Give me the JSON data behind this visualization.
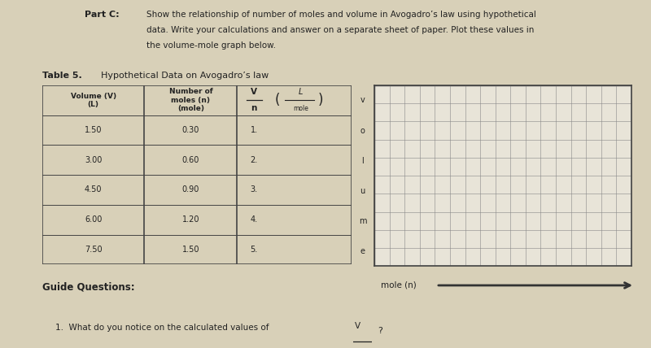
{
  "page_bg": "#d8d0b8",
  "table_bg": "#ffffff",
  "graph_bg": "#e8e4d8",
  "text_color": "#222222",
  "grid_color": "#888888",
  "border_color": "#444444",
  "arrow_color": "#333333",
  "rows": [
    [
      "1.50",
      "0.30",
      "1."
    ],
    [
      "3.00",
      "0.60",
      "2."
    ],
    [
      "4.50",
      "0.90",
      "3."
    ],
    [
      "6.00",
      "1.20",
      "4."
    ],
    [
      "7.50",
      "1.50",
      "5."
    ]
  ],
  "graph_ylabel_chars": [
    "v",
    "o",
    "l",
    "u",
    "m",
    "e"
  ],
  "graph_xlabel": "mole (n)",
  "grid_rows": 10,
  "grid_cols": 17
}
